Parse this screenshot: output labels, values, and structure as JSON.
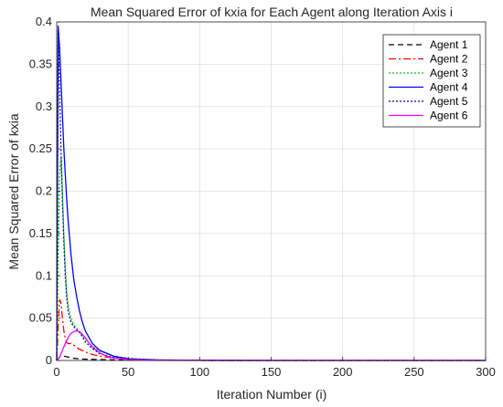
{
  "chart_data": {
    "type": "line",
    "title": "Mean Squared Error of kxia for Each Agent along Iteration Axis i",
    "xlabel": "Iteration Number (i)",
    "ylabel": "Mean Squared Error of kxia",
    "xlim": [
      0,
      300
    ],
    "ylim": [
      0,
      0.4
    ],
    "xticks": [
      0,
      50,
      100,
      150,
      200,
      250,
      300
    ],
    "xtick_labels": [
      "0",
      "50",
      "100",
      "150",
      "200",
      "250",
      "300"
    ],
    "yticks": [
      0,
      0.05,
      0.1,
      0.15,
      0.2,
      0.25,
      0.3,
      0.35,
      0.4
    ],
    "ytick_labels": [
      "0",
      "0.05",
      "0.1",
      "0.15",
      "0.2",
      "0.25",
      "0.3",
      "0.35",
      "0.4"
    ],
    "grid": true,
    "legend_position": "top-right",
    "series": [
      {
        "name": "Agent 1",
        "color": "#000000",
        "dash": "6,4",
        "points": [
          [
            0,
            0.0
          ],
          [
            1,
            0.002
          ],
          [
            2,
            0.004
          ],
          [
            3,
            0.005
          ],
          [
            5,
            0.005
          ],
          [
            8,
            0.004
          ],
          [
            10,
            0.003
          ],
          [
            15,
            0.002
          ],
          [
            20,
            0.0015
          ],
          [
            30,
            0.001
          ],
          [
            50,
            0.0005
          ],
          [
            80,
            0.0002
          ],
          [
            100,
            0.0001
          ],
          [
            150,
            0.0
          ],
          [
            300,
            0.0
          ]
        ]
      },
      {
        "name": "Agent 2",
        "color": "#ff0000",
        "dash": "8,3,2,3",
        "points": [
          [
            0,
            0.0
          ],
          [
            1,
            0.04
          ],
          [
            2,
            0.072
          ],
          [
            3,
            0.068
          ],
          [
            4,
            0.05
          ],
          [
            5,
            0.035
          ],
          [
            6,
            0.026
          ],
          [
            7,
            0.021
          ],
          [
            8,
            0.02
          ],
          [
            10,
            0.02
          ],
          [
            12,
            0.018
          ],
          [
            15,
            0.014
          ],
          [
            20,
            0.01
          ],
          [
            25,
            0.007
          ],
          [
            30,
            0.005
          ],
          [
            40,
            0.003
          ],
          [
            50,
            0.0015
          ],
          [
            70,
            0.0005
          ],
          [
            100,
            0.0001
          ],
          [
            150,
            0.0
          ],
          [
            300,
            0.0
          ]
        ]
      },
      {
        "name": "Agent 3",
        "color": "#00cc00",
        "dash": "2,2",
        "points": [
          [
            0,
            0.0
          ],
          [
            1,
            0.12
          ],
          [
            2,
            0.22
          ],
          [
            3,
            0.24
          ],
          [
            4,
            0.2
          ],
          [
            5,
            0.15
          ],
          [
            6,
            0.11
          ],
          [
            7,
            0.08
          ],
          [
            8,
            0.065
          ],
          [
            10,
            0.05
          ],
          [
            12,
            0.042
          ],
          [
            14,
            0.038
          ],
          [
            16,
            0.033
          ],
          [
            20,
            0.025
          ],
          [
            25,
            0.017
          ],
          [
            30,
            0.011
          ],
          [
            40,
            0.005
          ],
          [
            50,
            0.0025
          ],
          [
            70,
            0.0008
          ],
          [
            100,
            0.0002
          ],
          [
            150,
            0.0
          ],
          [
            300,
            0.0
          ]
        ]
      },
      {
        "name": "Agent 4",
        "color": "#0000ff",
        "dash": "",
        "points": [
          [
            0,
            0.0
          ],
          [
            1,
            0.395
          ],
          [
            2,
            0.37
          ],
          [
            3,
            0.33
          ],
          [
            4,
            0.29
          ],
          [
            5,
            0.25
          ],
          [
            6,
            0.22
          ],
          [
            7,
            0.19
          ],
          [
            8,
            0.165
          ],
          [
            10,
            0.125
          ],
          [
            12,
            0.095
          ],
          [
            14,
            0.075
          ],
          [
            16,
            0.058
          ],
          [
            18,
            0.045
          ],
          [
            20,
            0.035
          ],
          [
            25,
            0.02
          ],
          [
            30,
            0.012
          ],
          [
            40,
            0.005
          ],
          [
            50,
            0.002
          ],
          [
            70,
            0.0006
          ],
          [
            100,
            0.0001
          ],
          [
            150,
            0.0
          ],
          [
            300,
            0.0
          ]
        ]
      },
      {
        "name": "Agent 5",
        "color": "#0000aa",
        "dash": "2,2",
        "points": [
          [
            0,
            0.0
          ],
          [
            1,
            0.39
          ],
          [
            2,
            0.32
          ],
          [
            3,
            0.25
          ],
          [
            4,
            0.19
          ],
          [
            5,
            0.14
          ],
          [
            6,
            0.1
          ],
          [
            7,
            0.075
          ],
          [
            8,
            0.058
          ],
          [
            10,
            0.045
          ],
          [
            12,
            0.04
          ],
          [
            14,
            0.036
          ],
          [
            16,
            0.033
          ],
          [
            18,
            0.028
          ],
          [
            20,
            0.022
          ],
          [
            25,
            0.014
          ],
          [
            30,
            0.008
          ],
          [
            40,
            0.0035
          ],
          [
            50,
            0.0015
          ],
          [
            70,
            0.0004
          ],
          [
            100,
            0.0001
          ],
          [
            150,
            0.0
          ],
          [
            300,
            0.0
          ]
        ]
      },
      {
        "name": "Agent 6",
        "color": "#ff00ff",
        "dash": "",
        "points": [
          [
            0,
            0.0
          ],
          [
            2,
            0.004
          ],
          [
            4,
            0.012
          ],
          [
            6,
            0.02
          ],
          [
            8,
            0.027
          ],
          [
            10,
            0.032
          ],
          [
            12,
            0.034
          ],
          [
            14,
            0.035
          ],
          [
            16,
            0.034
          ],
          [
            18,
            0.031
          ],
          [
            20,
            0.027
          ],
          [
            22,
            0.022
          ],
          [
            25,
            0.016
          ],
          [
            30,
            0.009
          ],
          [
            35,
            0.005
          ],
          [
            40,
            0.0028
          ],
          [
            50,
            0.001
          ],
          [
            70,
            0.0002
          ],
          [
            100,
            0.0
          ],
          [
            300,
            0.0
          ]
        ]
      }
    ]
  }
}
